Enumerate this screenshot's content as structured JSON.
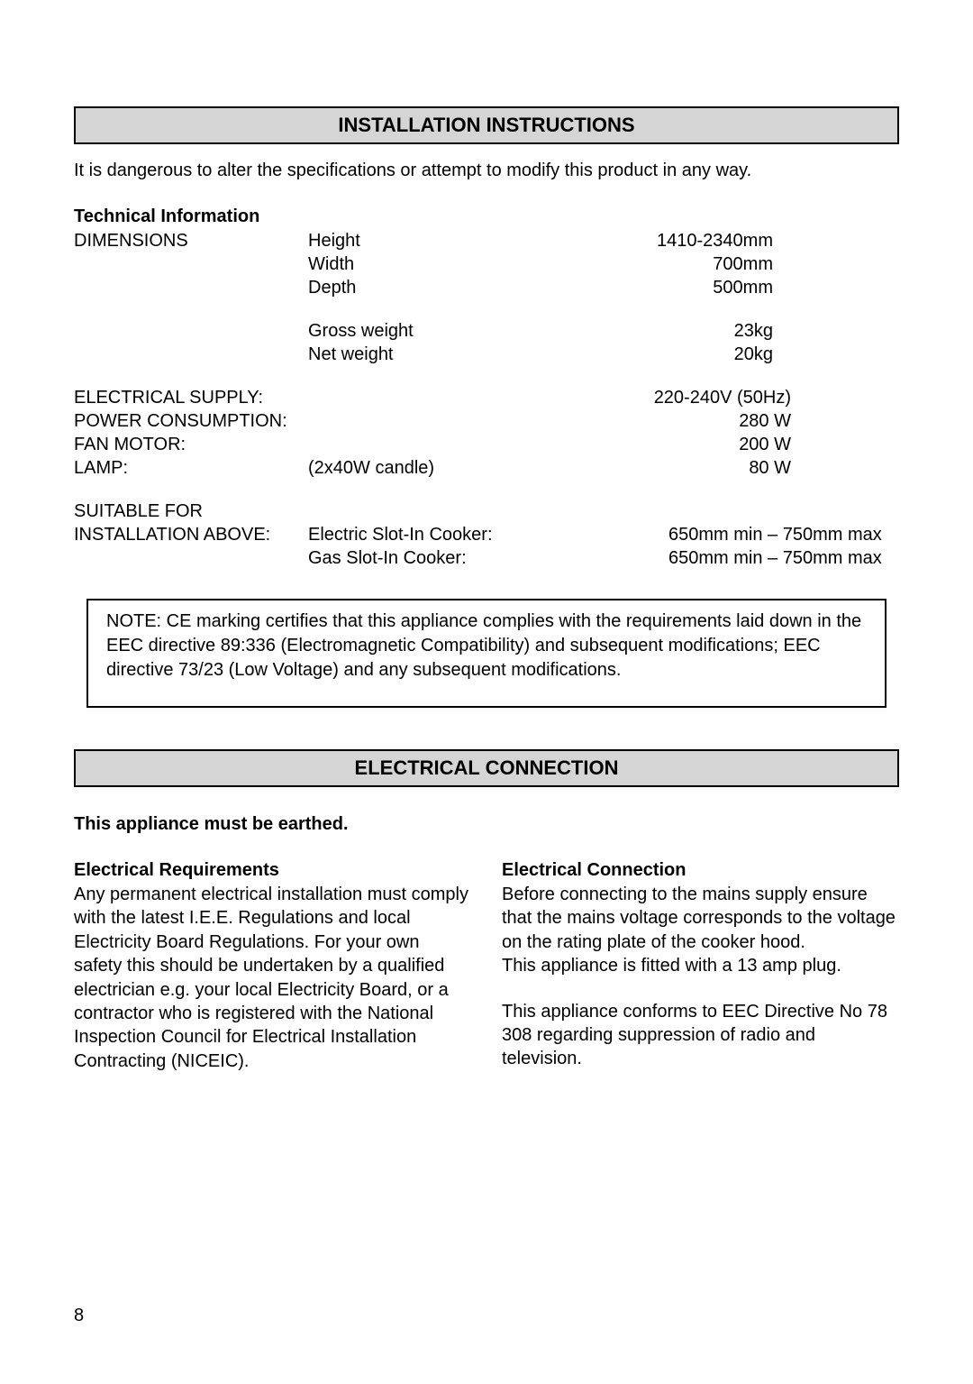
{
  "section1": {
    "title": "INSTALLATION INSTRUCTIONS",
    "intro": "It is dangerous to alter the specifications or attempt to modify this product in any way.",
    "techInfoHead": "Technical Information",
    "dimensions": {
      "label": "DIMENSIONS",
      "rows": [
        {
          "k": "Height",
          "v": "1410-2340mm"
        },
        {
          "k": "Width",
          "v": "700mm"
        },
        {
          "k": "Depth",
          "v": "500mm"
        }
      ]
    },
    "weight": {
      "rows": [
        {
          "k": "Gross weight",
          "v": "23kg"
        },
        {
          "k": "Net weight",
          "v": "20kg"
        }
      ]
    },
    "electrical": {
      "rows": [
        {
          "l": "ELECTRICAL SUPPLY:",
          "m": "",
          "r": "220-240V  (50Hz)"
        },
        {
          "l": "POWER CONSUMPTION:",
          "m": "",
          "r": "280 W"
        },
        {
          "l": "FAN MOTOR:",
          "m": "",
          "r": "200 W"
        },
        {
          "l": "LAMP:",
          "m": "(2x40W candle)",
          "r": "80 W"
        }
      ]
    },
    "suitable": {
      "head": "SUITABLE FOR",
      "label": "INSTALLATION ABOVE:",
      "rows": [
        {
          "k": "Electric Slot-In Cooker:",
          "v": "650mm min – 750mm max"
        },
        {
          "k": "Gas Slot-In Cooker:",
          "v": "650mm min – 750mm max"
        }
      ]
    },
    "note": "NOTE:  CE marking certifies that this appliance complies with the requirements laid down in the EEC directive 89:336 (Electromagnetic Compatibility) and subsequent modifications; EEC directive 73/23 (Low Voltage) and any subsequent modifications."
  },
  "section2": {
    "title": "ELECTRICAL CONNECTION",
    "earthed": "This appliance must be earthed.",
    "left": {
      "head": "Electrical Requirements",
      "body": "Any permanent electrical installation must comply with the latest I.E.E. Regulations and local Electricity Board Regulations. For your own safety this should be undertaken by a qualified electrician e.g. your local Electricity Board, or a contractor who is registered with the National Inspection Council for Electrical Installation Contracting (NICEIC)."
    },
    "right": {
      "head": "Electrical Connection",
      "body1": "Before connecting to the mains supply ensure that the mains voltage corresponds to the voltage on the rating plate of the cooker hood.",
      "body2": "This appliance is fitted with a 13 amp plug.",
      "body3": "This appliance conforms to EEC Directive No 78 308 regarding suppression of radio and television."
    }
  },
  "pageNumber": "8",
  "colors": {
    "headerBg": "#d5d5d5",
    "border": "#000000",
    "text": "#000000",
    "background": "#ffffff"
  }
}
